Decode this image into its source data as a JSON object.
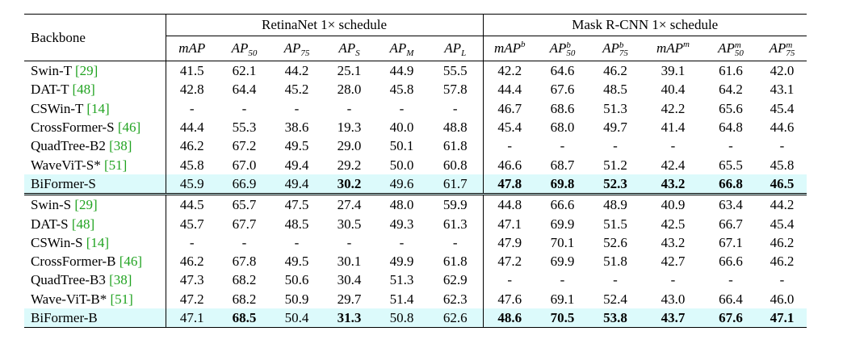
{
  "header": {
    "backbone": "Backbone",
    "group_retina": "RetinaNet 1× schedule",
    "group_mask": "Mask R-CNN 1× schedule",
    "metrics": [
      {
        "base": "mAP",
        "sub": "",
        "sup": ""
      },
      {
        "base": "AP",
        "sub": "50",
        "sup": ""
      },
      {
        "base": "AP",
        "sub": "75",
        "sup": ""
      },
      {
        "base": "AP",
        "sub": "S",
        "sup": ""
      },
      {
        "base": "AP",
        "sub": "M",
        "sup": ""
      },
      {
        "base": "AP",
        "sub": "L",
        "sup": ""
      },
      {
        "base": "mAP",
        "sub": "",
        "sup": "b"
      },
      {
        "base": "AP",
        "sub": "50",
        "sup": "b"
      },
      {
        "base": "AP",
        "sub": "75",
        "sup": "b"
      },
      {
        "base": "mAP",
        "sub": "",
        "sup": "m"
      },
      {
        "base": "AP",
        "sub": "50",
        "sup": "m"
      },
      {
        "base": "AP",
        "sub": "75",
        "sup": "m"
      }
    ]
  },
  "groups": [
    {
      "rows": [
        {
          "name": "Swin-T",
          "cite": "[29]",
          "values": [
            "41.5",
            "62.1",
            "44.2",
            "25.1",
            "44.9",
            "55.5",
            "42.2",
            "64.6",
            "46.2",
            "39.1",
            "61.6",
            "42.0"
          ],
          "bold": [],
          "highlight": false
        },
        {
          "name": "DAT-T",
          "cite": "[48]",
          "values": [
            "42.8",
            "64.4",
            "45.2",
            "28.0",
            "45.8",
            "57.8",
            "44.4",
            "67.6",
            "48.5",
            "40.4",
            "64.2",
            "43.1"
          ],
          "bold": [],
          "highlight": false
        },
        {
          "name": "CSWin-T",
          "cite": "[14]",
          "values": [
            "-",
            "-",
            "-",
            "-",
            "-",
            "-",
            "46.7",
            "68.6",
            "51.3",
            "42.2",
            "65.6",
            "45.4"
          ],
          "bold": [],
          "highlight": false
        },
        {
          "name": "CrossFormer-S",
          "cite": "[46]",
          "values": [
            "44.4",
            "55.3",
            "38.6",
            "19.3",
            "40.0",
            "48.8",
            "45.4",
            "68.0",
            "49.7",
            "41.4",
            "64.8",
            "44.6"
          ],
          "bold": [],
          "highlight": false
        },
        {
          "name": "QuadTree-B2",
          "cite": "[38]",
          "values": [
            "46.2",
            "67.2",
            "49.5",
            "29.0",
            "50.1",
            "61.8",
            "-",
            "-",
            "-",
            "-",
            "-",
            "-"
          ],
          "bold": [],
          "highlight": false
        },
        {
          "name": "WaveViT-S*",
          "cite": "[51]",
          "values": [
            "45.8",
            "67.0",
            "49.4",
            "29.2",
            "50.0",
            "60.8",
            "46.6",
            "68.7",
            "51.2",
            "42.4",
            "65.5",
            "45.8"
          ],
          "bold": [],
          "highlight": false
        },
        {
          "name": "BiFormer-S",
          "cite": "",
          "values": [
            "45.9",
            "66.9",
            "49.4",
            "30.2",
            "49.6",
            "61.7",
            "47.8",
            "69.8",
            "52.3",
            "43.2",
            "66.8",
            "46.5"
          ],
          "bold": [
            3,
            6,
            7,
            8,
            9,
            10,
            11
          ],
          "highlight": true
        }
      ]
    },
    {
      "rows": [
        {
          "name": "Swin-S",
          "cite": "[29]",
          "values": [
            "44.5",
            "65.7",
            "47.5",
            "27.4",
            "48.0",
            "59.9",
            "44.8",
            "66.6",
            "48.9",
            "40.9",
            "63.4",
            "44.2"
          ],
          "bold": [],
          "highlight": false
        },
        {
          "name": "DAT-S",
          "cite": "[48]",
          "values": [
            "45.7",
            "67.7",
            "48.5",
            "30.5",
            "49.3",
            "61.3",
            "47.1",
            "69.9",
            "51.5",
            "42.5",
            "66.7",
            "45.4"
          ],
          "bold": [],
          "highlight": false
        },
        {
          "name": "CSWin-S",
          "cite": "[14]",
          "values": [
            "-",
            "-",
            "-",
            "-",
            "-",
            "-",
            "47.9",
            "70.1",
            "52.6",
            "43.2",
            "67.1",
            "46.2"
          ],
          "bold": [],
          "highlight": false
        },
        {
          "name": "CrossFormer-B",
          "cite": "[46]",
          "values": [
            "46.2",
            "67.8",
            "49.5",
            "30.1",
            "49.9",
            "61.8",
            "47.2",
            "69.9",
            "51.8",
            "42.7",
            "66.6",
            "46.2"
          ],
          "bold": [],
          "highlight": false
        },
        {
          "name": "QuadTree-B3",
          "cite": "[38]",
          "values": [
            "47.3",
            "68.2",
            "50.6",
            "30.4",
            "51.3",
            "62.9",
            "-",
            "-",
            "-",
            "-",
            "-",
            "-"
          ],
          "bold": [],
          "highlight": false
        },
        {
          "name": "Wave-ViT-B*",
          "cite": "[51]",
          "values": [
            "47.2",
            "68.2",
            "50.9",
            "29.7",
            "51.4",
            "62.3",
            "47.6",
            "69.1",
            "52.4",
            "43.0",
            "66.4",
            "46.0"
          ],
          "bold": [],
          "highlight": false
        },
        {
          "name": "BiFormer-B",
          "cite": "",
          "values": [
            "47.1",
            "68.5",
            "50.4",
            "31.3",
            "50.8",
            "62.6",
            "48.6",
            "70.5",
            "53.8",
            "43.7",
            "67.6",
            "47.1"
          ],
          "bold": [
            1,
            3,
            6,
            7,
            8,
            9,
            10,
            11
          ],
          "highlight": true
        }
      ]
    }
  ]
}
